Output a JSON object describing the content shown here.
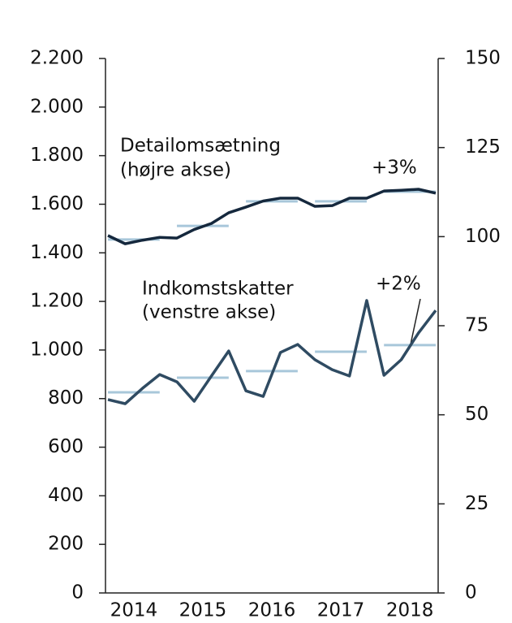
{
  "chart_data": {
    "type": "line",
    "x": [
      2014,
      2014.25,
      2014.5,
      2014.75,
      2015,
      2015.25,
      2015.5,
      2015.75,
      2016,
      2016.25,
      2016.5,
      2016.75,
      2017,
      2017.25,
      2017.5,
      2017.75,
      2018,
      2018.25,
      2018.5,
      2018.75
    ],
    "series": [
      {
        "color": "#15283d",
        "axis": "y2",
        "values": [
          100.3,
          98,
          99,
          99.8,
          99.6,
          102,
          103.7,
          106.7,
          108.3,
          110,
          110.8,
          110.8,
          108.5,
          108.7,
          110.8,
          110.8,
          112.8,
          113,
          113.3,
          112.2
        ]
      },
      {
        "color": "#2f4b62",
        "axis": "y",
        "values": [
          796,
          779,
          842,
          899,
          869,
          789,
          893,
          996,
          832,
          809,
          990,
          1023,
          960,
          919,
          893,
          1204,
          896,
          960,
          1070,
          1163
        ]
      }
    ],
    "averages": [
      {
        "color": "#a8c7da",
        "axis": "y2",
        "x": [
          2014,
          2015,
          2016,
          2017,
          2018
        ],
        "values": [
          99.2,
          103,
          109.9,
          109.9,
          112.6
        ]
      },
      {
        "color": "#a8c7da",
        "axis": "y",
        "x": [
          2014,
          2015,
          2016,
          2017,
          2018
        ],
        "values": [
          826,
          886,
          913,
          993,
          1020
        ]
      }
    ],
    "annotations": [
      "Detailomsætning",
      "(højre akse)",
      "+3%",
      "Indkomstskatter",
      "(venstre akse)",
      "+2%"
    ],
    "xlim": [
      2014,
      2018.75
    ],
    "xticks": [
      {
        "value": 2014.375,
        "label": "2014"
      },
      {
        "value": 2015.375,
        "label": "2015"
      },
      {
        "value": 2016.375,
        "label": "2016"
      },
      {
        "value": 2017.375,
        "label": "2017"
      },
      {
        "value": 2018.375,
        "label": "2018"
      }
    ],
    "ylim": [
      0,
      2200
    ],
    "yticks": [
      0,
      200,
      400,
      600,
      800,
      {
        "value": 1000,
        "label": "1.000"
      },
      {
        "value": 1200,
        "label": "1.200"
      },
      {
        "value": 1400,
        "label": "1.400"
      },
      {
        "value": 1600,
        "label": "1.600"
      },
      {
        "value": 1800,
        "label": "1.800"
      },
      {
        "value": 2000,
        "label": "2.000"
      },
      {
        "value": 2200,
        "label": "2.200"
      }
    ],
    "y2lim": [
      0,
      150
    ],
    "y2ticks": [
      0,
      25,
      50,
      75,
      100,
      125,
      150
    ]
  }
}
